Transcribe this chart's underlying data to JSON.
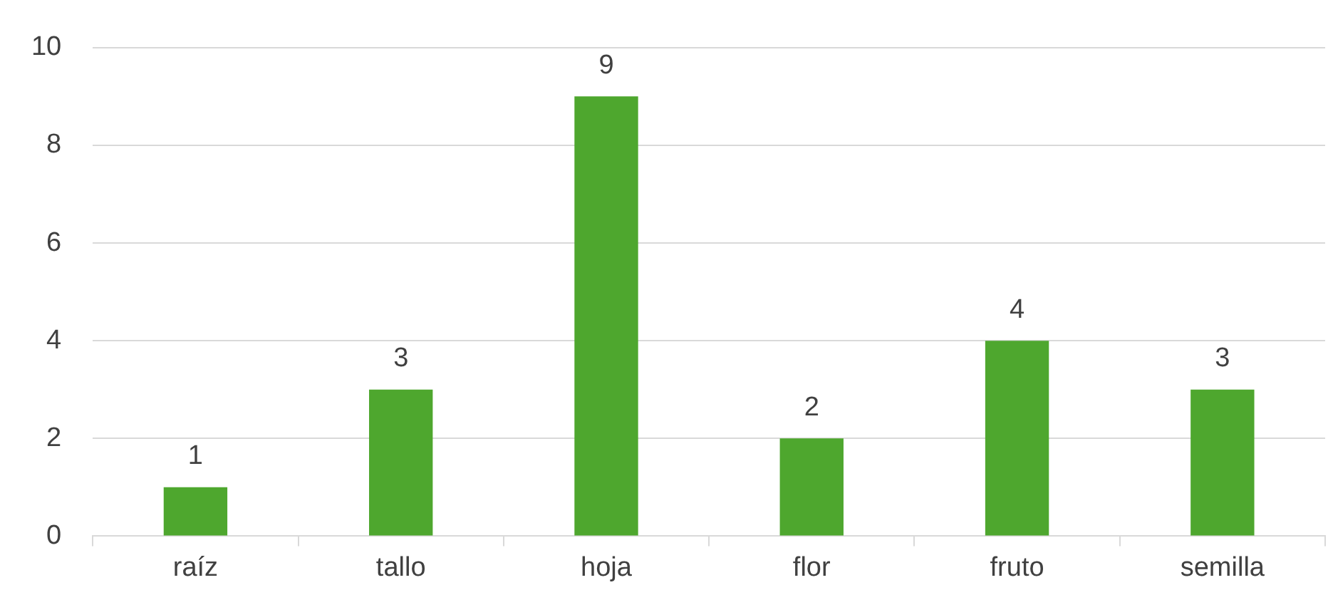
{
  "chart_data": {
    "type": "bar",
    "categories": [
      "raíz",
      "tallo",
      "hoja",
      "flor",
      "fruto",
      "semilla"
    ],
    "values": [
      1,
      3,
      9,
      2,
      4,
      3
    ],
    "color": "#4ea72e",
    "ylim": [
      0,
      10
    ],
    "yticks": [
      0,
      2,
      4,
      6,
      8,
      10
    ],
    "grid": "y",
    "data_labels": true,
    "legend": false
  }
}
